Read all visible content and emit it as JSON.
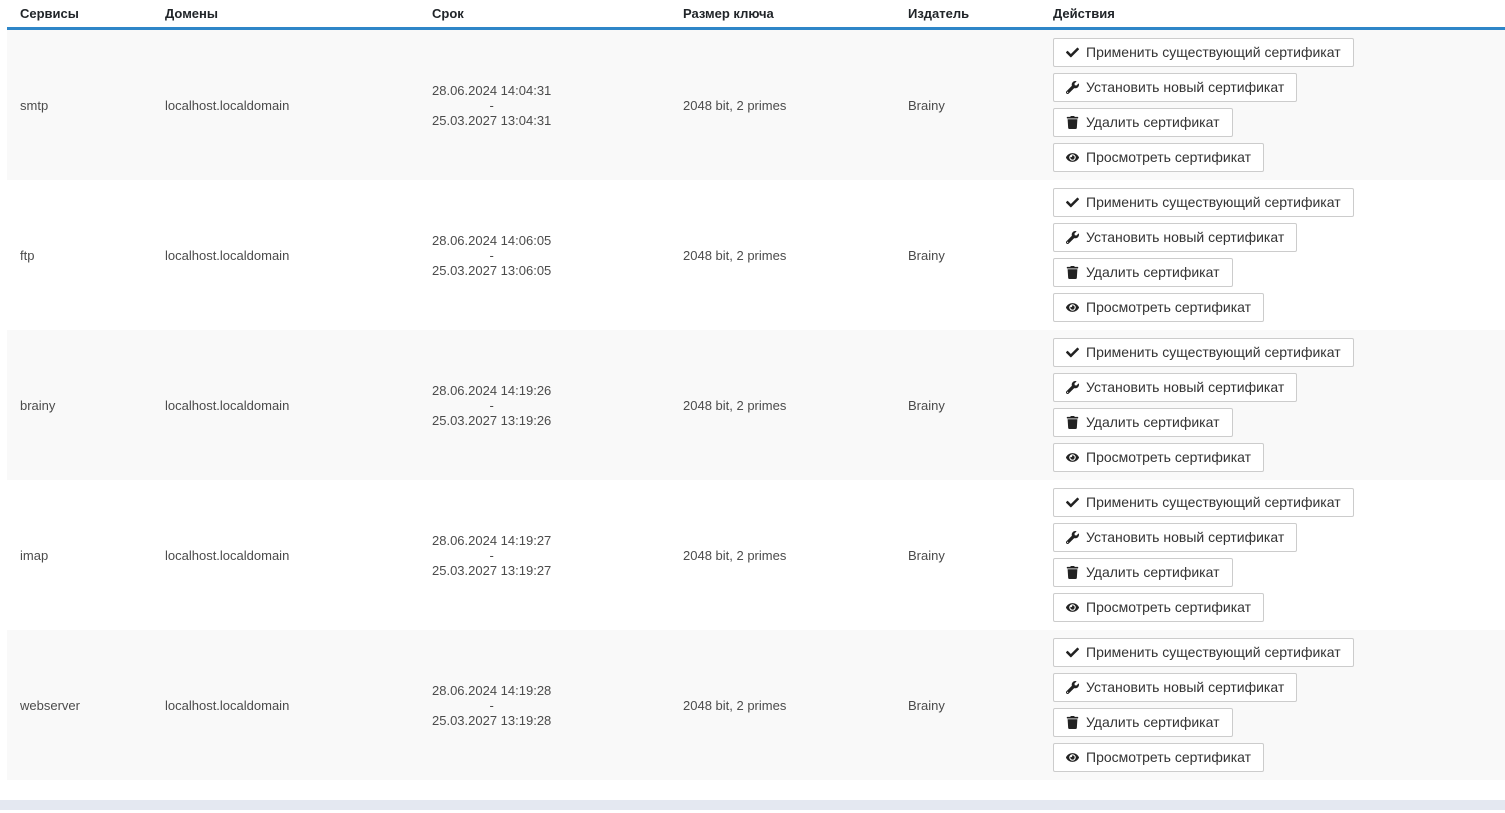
{
  "colors": {
    "header_underline": "#2e86c8",
    "row_alt_bg": "#f9f9f9",
    "footer_bar_bg": "#e4e8f1"
  },
  "table": {
    "columns": [
      {
        "label": "Сервисы"
      },
      {
        "label": "Домены"
      },
      {
        "label": "Срок"
      },
      {
        "label": "Размер ключа"
      },
      {
        "label": "Издатель"
      },
      {
        "label": "Действия"
      }
    ],
    "actions": [
      {
        "name": "apply-existing-certificate-button",
        "icon": "check-icon",
        "label": "Применить существующий сертификат"
      },
      {
        "name": "install-new-certificate-button",
        "icon": "wrench-icon",
        "label": "Установить новый сертификат"
      },
      {
        "name": "delete-certificate-button",
        "icon": "trash-icon",
        "label": "Удалить сертификат"
      },
      {
        "name": "view-certificate-button",
        "icon": "eye-icon",
        "label": "Просмотреть сертификат"
      }
    ],
    "rows": [
      {
        "service": "smtp",
        "domain": "localhost.localdomain",
        "term_start": "28.06.2024 14:04:31",
        "term_separator": "-",
        "term_end": "25.03.2027 13:04:31",
        "key_size": "2048 bit, 2 primes",
        "issuer": "Brainy"
      },
      {
        "service": "ftp",
        "domain": "localhost.localdomain",
        "term_start": "28.06.2024 14:06:05",
        "term_separator": "-",
        "term_end": "25.03.2027 13:06:05",
        "key_size": "2048 bit, 2 primes",
        "issuer": "Brainy"
      },
      {
        "service": "brainy",
        "domain": "localhost.localdomain",
        "term_start": "28.06.2024 14:19:26",
        "term_separator": "-",
        "term_end": "25.03.2027 13:19:26",
        "key_size": "2048 bit, 2 primes",
        "issuer": "Brainy"
      },
      {
        "service": "imap",
        "domain": "localhost.localdomain",
        "term_start": "28.06.2024 14:19:27",
        "term_separator": "-",
        "term_end": "25.03.2027 13:19:27",
        "key_size": "2048 bit, 2 primes",
        "issuer": "Brainy"
      },
      {
        "service": "webserver",
        "domain": "localhost.localdomain",
        "term_start": "28.06.2024 14:19:28",
        "term_separator": "-",
        "term_end": "25.03.2027 13:19:28",
        "key_size": "2048 bit, 2 primes",
        "issuer": "Brainy"
      }
    ]
  }
}
